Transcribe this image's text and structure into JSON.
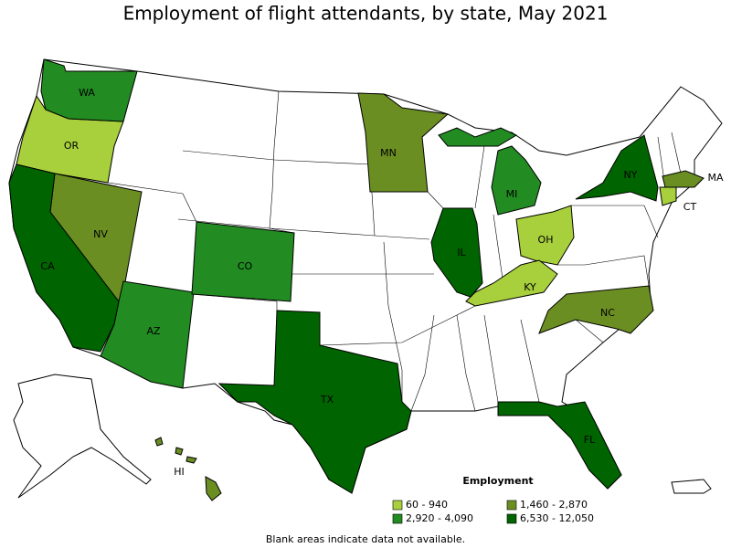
{
  "map": {
    "title": "Employment of flight attendants, by state, May 2021",
    "legend": {
      "title": "Employment",
      "items": [
        {
          "label": "60 - 940",
          "color": "#a8d03c",
          "states": [
            "OR",
            "OH",
            "KY",
            "CT"
          ]
        },
        {
          "label": "1,460 - 2,870",
          "color": "#6b8e23",
          "states": [
            "NV",
            "MN",
            "NC",
            "MA",
            "HI"
          ]
        },
        {
          "label": "2,920 - 4,090",
          "color": "#228b22",
          "states": [
            "WA",
            "AZ",
            "CO",
            "MI"
          ]
        },
        {
          "label": "6,530 - 12,050",
          "color": "#006400",
          "states": [
            "CA",
            "TX",
            "IL",
            "NY",
            "FL"
          ]
        }
      ]
    },
    "note": "Blank areas indicate data not available."
  }
}
